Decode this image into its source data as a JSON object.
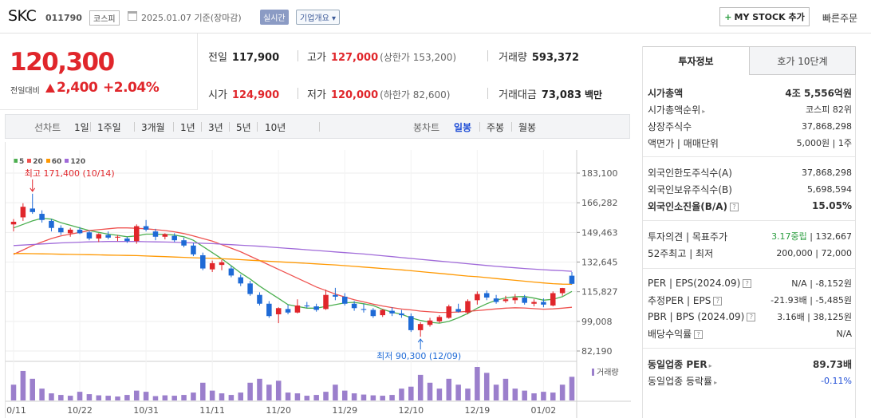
{
  "header": {
    "name": "SKC",
    "code": "011790",
    "market": "코스피",
    "date": "2025.01.07 기준(장마감)",
    "realtime": "실시간",
    "overview": "기업개요",
    "mystock": "MY STOCK 추가",
    "quick_order": "빠른주문"
  },
  "price": {
    "current": "120,300",
    "change_label": "전일대비",
    "change": "2,400",
    "change_pct": "+2.04%"
  },
  "stats": {
    "prev_label": "전일",
    "prev": "117,900",
    "high_label": "고가",
    "high": "127,000",
    "upper_limit": "(상한가 153,200)",
    "volume_label": "거래량",
    "volume": "593,372",
    "open_label": "시가",
    "open": "124,900",
    "low_label": "저가",
    "low": "120,000",
    "lower_limit": "(하한가 82,600)",
    "value_label": "거래대금",
    "value": "73,083",
    "value_unit": "백만"
  },
  "toolbar": {
    "line_chart": "선차트",
    "periods": [
      "1일",
      "1주일",
      "3개월",
      "1년",
      "3년",
      "5년",
      "10년"
    ],
    "candle_chart": "봉차트",
    "candles": [
      "일봉",
      "주봉",
      "월봉"
    ]
  },
  "chart_data": {
    "type": "candlestick",
    "legend": [
      "5",
      "20",
      "60",
      "120"
    ],
    "ma_colors": [
      "#4caf50",
      "#ef5350",
      "#ff9800",
      "#a06ad9"
    ],
    "up_color": "#e0262b",
    "down_color": "#1e6ad6",
    "yticks": [
      183100,
      166282,
      149463,
      132645,
      115827,
      99008,
      82190
    ],
    "ytick_labels": [
      "183,100",
      "166,282",
      "149,463",
      "132,645",
      "115,827",
      "99,008",
      "82,190"
    ],
    "ylim": [
      82190,
      183100
    ],
    "xtick_labels": [
      "10/11",
      "10/22",
      "10/31",
      "11/11",
      "11/20",
      "11/29",
      "12/10",
      "12/19",
      "01/02"
    ],
    "xtick_index": [
      0,
      7,
      14,
      21,
      28,
      35,
      42,
      49,
      56
    ],
    "high_note": "최고 171,400 (10/14)",
    "low_note": "최저 90,300 (12/09)",
    "volume_label": "거래량",
    "candles": [
      [
        154000,
        157000,
        150000,
        155500
      ],
      [
        158000,
        166000,
        156000,
        164000
      ],
      [
        163000,
        171400,
        160000,
        161000
      ],
      [
        160000,
        162000,
        155000,
        156500
      ],
      [
        156000,
        157000,
        150000,
        152000
      ],
      [
        152000,
        153500,
        148000,
        149500
      ],
      [
        149000,
        152000,
        147000,
        151000
      ],
      [
        151000,
        152500,
        148500,
        149000
      ],
      [
        149500,
        150500,
        145000,
        146000
      ],
      [
        146000,
        149000,
        144000,
        148500
      ],
      [
        148000,
        150000,
        145500,
        146500
      ],
      [
        146500,
        148000,
        144500,
        147000
      ],
      [
        146000,
        147000,
        143500,
        144500
      ],
      [
        144500,
        154000,
        143000,
        153000
      ],
      [
        153000,
        156500,
        150000,
        151000
      ],
      [
        150000,
        151500,
        145000,
        147000
      ],
      [
        147000,
        149000,
        145500,
        148500
      ],
      [
        147500,
        149000,
        144000,
        145000
      ],
      [
        145000,
        146500,
        141000,
        142000
      ],
      [
        142000,
        143500,
        136000,
        137000
      ],
      [
        136500,
        138000,
        128000,
        129000
      ],
      [
        128500,
        133500,
        127000,
        132000
      ],
      [
        131000,
        134000,
        128000,
        132500
      ],
      [
        129000,
        130500,
        124000,
        125000
      ],
      [
        124000,
        125500,
        119000,
        120500
      ],
      [
        120500,
        122000,
        113500,
        114500
      ],
      [
        114000,
        115500,
        108000,
        109000
      ],
      [
        109000,
        110500,
        101000,
        102000
      ],
      [
        103000,
        107000,
        98000,
        106500
      ],
      [
        106000,
        108500,
        103000,
        104000
      ],
      [
        104000,
        111500,
        103500,
        108000
      ],
      [
        108000,
        110000,
        106500,
        107500
      ],
      [
        107500,
        109000,
        104500,
        105500
      ],
      [
        106000,
        117000,
        105500,
        114000
      ],
      [
        114000,
        118000,
        111000,
        113000
      ],
      [
        113000,
        115000,
        108000,
        109000
      ],
      [
        109000,
        110500,
        105000,
        106500
      ],
      [
        106000,
        109000,
        104000,
        105500
      ],
      [
        105500,
        106500,
        101000,
        102000
      ],
      [
        102500,
        106000,
        101500,
        105500
      ],
      [
        105000,
        107000,
        102000,
        103500
      ],
      [
        103500,
        105500,
        101000,
        102500
      ],
      [
        102000,
        103500,
        93000,
        94000
      ],
      [
        94000,
        98500,
        90300,
        97500
      ],
      [
        97000,
        101000,
        96000,
        99500
      ],
      [
        99000,
        102500,
        98000,
        101500
      ],
      [
        101000,
        108500,
        100500,
        107500
      ],
      [
        106000,
        109000,
        104000,
        104500
      ],
      [
        104000,
        111500,
        103000,
        110500
      ],
      [
        111000,
        116000,
        108500,
        114500
      ],
      [
        115000,
        116500,
        111000,
        112500
      ],
      [
        112000,
        114000,
        109000,
        110000
      ],
      [
        110500,
        113500,
        109500,
        111500
      ],
      [
        111000,
        114500,
        109000,
        112500
      ],
      [
        112500,
        114000,
        108500,
        109500
      ],
      [
        109000,
        111500,
        107500,
        110000
      ],
      [
        110000,
        112000,
        107000,
        108500
      ],
      [
        108000,
        116000,
        107500,
        115000
      ],
      [
        115000,
        118000,
        113500,
        117900
      ],
      [
        124900,
        127000,
        120000,
        120300
      ]
    ],
    "ma5": [
      152000,
      154000,
      156000,
      157500,
      157000,
      155000,
      153500,
      152000,
      150500,
      149500,
      148500,
      147800,
      147000,
      147500,
      148500,
      148500,
      148300,
      148000,
      147000,
      145000,
      141500,
      138000,
      134500,
      130500,
      126500,
      123000,
      119000,
      115500,
      112000,
      108500,
      107500,
      106500,
      106500,
      107500,
      108500,
      109500,
      109800,
      109000,
      108000,
      105800,
      104200,
      103000,
      101000,
      99500,
      98500,
      98000,
      99000,
      101000,
      103500,
      106500,
      109000,
      111000,
      112300,
      113000,
      113100,
      112200,
      111000,
      111500,
      113000,
      116000
    ],
    "ma20": [
      137000,
      139500,
      142000,
      144000,
      146000,
      147500,
      148500,
      149500,
      150500,
      151000,
      151500,
      152000,
      152000,
      151800,
      151500,
      151000,
      150500,
      149800,
      148800,
      147500,
      146000,
      144500,
      142500,
      140500,
      138500,
      136000,
      133500,
      131000,
      128500,
      126000,
      123500,
      121000,
      118500,
      116500,
      114500,
      112800,
      111300,
      110000,
      108800,
      107700,
      106800,
      106000,
      105500,
      104800,
      104400,
      104100,
      104100,
      104300,
      104700,
      105100,
      105600,
      106100,
      106500,
      106700,
      106600,
      106200,
      105900,
      106100,
      106500,
      107000
    ],
    "ma60": [
      137500,
      137500,
      137400,
      137300,
      137200,
      137100,
      137000,
      136900,
      136800,
      136700,
      136600,
      136500,
      136400,
      136300,
      136100,
      135900,
      135700,
      135500,
      135300,
      135100,
      134900,
      134700,
      134500,
      134300,
      134000,
      133700,
      133400,
      133100,
      132800,
      132500,
      132200,
      131900,
      131600,
      131300,
      131000,
      130600,
      130200,
      129800,
      129400,
      129000,
      128600,
      128200,
      127700,
      127200,
      126700,
      126200,
      125700,
      125200,
      124700,
      124300,
      123800,
      123300,
      122800,
      122300,
      121800,
      121300,
      120800,
      120400,
      120100,
      120000
    ],
    "ma120": [
      142000,
      142300,
      142600,
      142900,
      143200,
      143500,
      143700,
      143900,
      144100,
      144200,
      144300,
      144300,
      144300,
      144300,
      144200,
      144100,
      144000,
      143900,
      143700,
      143500,
      143300,
      143100,
      142800,
      142500,
      142200,
      141900,
      141600,
      141200,
      140800,
      140400,
      140000,
      139600,
      139200,
      138800,
      138400,
      138000,
      137600,
      137200,
      136700,
      136200,
      135700,
      135200,
      134700,
      134200,
      133700,
      133200,
      132700,
      132200,
      131700,
      131200,
      130700,
      130200,
      129800,
      129400,
      129000,
      128600,
      128300,
      128000,
      127700,
      127400
    ],
    "volume": [
      40,
      75,
      55,
      30,
      18,
      14,
      12,
      22,
      16,
      13,
      12,
      10,
      14,
      25,
      22,
      11,
      13,
      12,
      14,
      20,
      45,
      25,
      18,
      14,
      20,
      45,
      55,
      40,
      50,
      20,
      18,
      12,
      14,
      22,
      40,
      25,
      18,
      15,
      13,
      12,
      14,
      30,
      35,
      65,
      45,
      30,
      55,
      40,
      30,
      85,
      70,
      40,
      55,
      30,
      25,
      18,
      22,
      20,
      40,
      60
    ]
  },
  "panel": {
    "tab_info": "투자정보",
    "tab_quote": "호가 10단계",
    "market_cap_label": "시가총액",
    "market_cap": "4조 5,556억원",
    "market_cap_rank_label": "시가총액순위",
    "market_cap_rank": "코스피 82위",
    "shares_label": "상장주식수",
    "shares": "37,868,298",
    "par_label": "액면가 | 매매단위",
    "par": "5,000원 | 1주",
    "foreign_limit_label": "외국인한도주식수(A)",
    "foreign_limit": "37,868,298",
    "foreign_hold_label": "외국인보유주식수(B)",
    "foreign_hold": "5,698,594",
    "foreign_ratio_label": "외국인소진율(B/A)",
    "foreign_ratio": "15.05%",
    "opinion_label": "투자의견 | 목표주가",
    "opinion": "3.17중립",
    "target": "| 132,667",
    "w52_label": "52주최고 | 최저",
    "w52": "200,000 | 72,000",
    "per_label": "PER | EPS(2024.09)",
    "per": "N/A | -8,152원",
    "est_per_label": "추정PER | EPS",
    "est_per": "-21.93배 | -5,485원",
    "pbr_label": "PBR | BPS (2024.09)",
    "pbr": "3.16배 | 38,125원",
    "div_label": "배당수익률",
    "div": "N/A",
    "sector_per_label": "동일업종 PER",
    "sector_per": "89.73배",
    "sector_chg_label": "동일업종 등락률",
    "sector_chg": "-0.11%"
  }
}
